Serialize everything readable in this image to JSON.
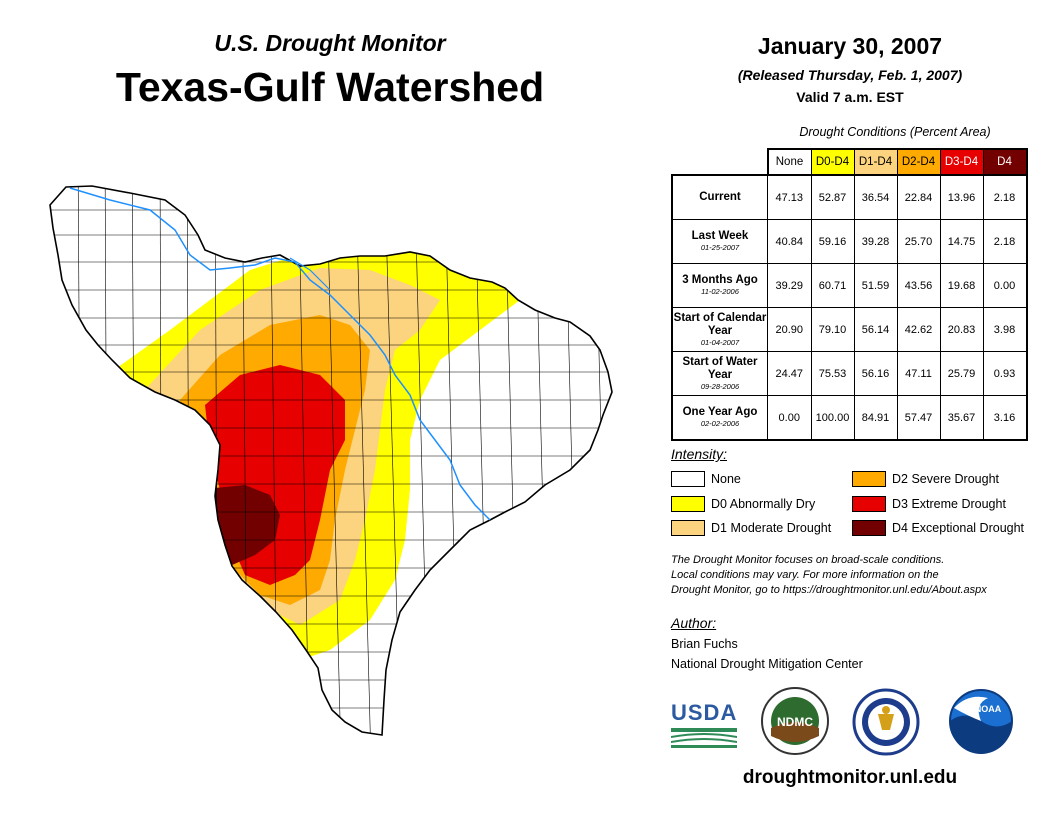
{
  "header": {
    "subtitle": "U.S. Drought Monitor",
    "title": "Texas-Gulf Watershed",
    "date": "January 30, 2007",
    "released": "(Released Thursday, Feb. 1, 2007)",
    "valid": "Valid 7 a.m. EST"
  },
  "table": {
    "caption": "Drought Conditions (Percent Area)",
    "columns": [
      "None",
      "D0-D4",
      "D1-D4",
      "D2-D4",
      "D3-D4",
      "D4"
    ],
    "column_colors": [
      "#ffffff",
      "#ffff00",
      "#fcd37f",
      "#ffaa00",
      "#e60000",
      "#730000"
    ],
    "rows": [
      {
        "label": "Current",
        "date": "",
        "values": [
          "47.13",
          "52.87",
          "36.54",
          "22.84",
          "13.96",
          "2.18"
        ]
      },
      {
        "label": "Last Week",
        "date": "01-25-2007",
        "values": [
          "40.84",
          "59.16",
          "39.28",
          "25.70",
          "14.75",
          "2.18"
        ]
      },
      {
        "label": "3 Months Ago",
        "date": "11-02-2006",
        "values": [
          "39.29",
          "60.71",
          "51.59",
          "43.56",
          "19.68",
          "0.00"
        ]
      },
      {
        "label": "Start of Calendar Year",
        "date": "01-04-2007",
        "values": [
          "20.90",
          "79.10",
          "56.14",
          "42.62",
          "20.83",
          "3.98"
        ]
      },
      {
        "label": "Start of Water Year",
        "date": "09-28-2006",
        "values": [
          "24.47",
          "75.53",
          "56.16",
          "47.11",
          "25.79",
          "0.93"
        ]
      },
      {
        "label": "One Year Ago",
        "date": "02-02-2006",
        "values": [
          "0.00",
          "100.00",
          "84.91",
          "57.47",
          "35.67",
          "3.16"
        ]
      }
    ]
  },
  "legend": {
    "title": "Intensity:",
    "items": [
      {
        "label": "None",
        "color": "#ffffff"
      },
      {
        "label": "D0 Abnormally Dry",
        "color": "#ffff00"
      },
      {
        "label": "D1 Moderate Drought",
        "color": "#fcd37f"
      },
      {
        "label": "D2 Severe Drought",
        "color": "#ffaa00"
      },
      {
        "label": "D3 Extreme Drought",
        "color": "#e60000"
      },
      {
        "label": "D4 Exceptional Drought",
        "color": "#730000"
      }
    ]
  },
  "note": {
    "line1": "The Drought Monitor focuses on broad-scale conditions.",
    "line2": "Local conditions may vary. For more information on the",
    "line3": "Drought Monitor, go to https://droughtmonitor.unl.edu/About.aspx"
  },
  "author": {
    "label": "Author:",
    "name": "Brian Fuchs",
    "org": "National Drought Mitigation Center"
  },
  "logos": {
    "usda": "USDA",
    "ndmc": "NDMC",
    "noaa": "NOAA"
  },
  "footer": {
    "url": "droughtmonitor.unl.edu"
  }
}
